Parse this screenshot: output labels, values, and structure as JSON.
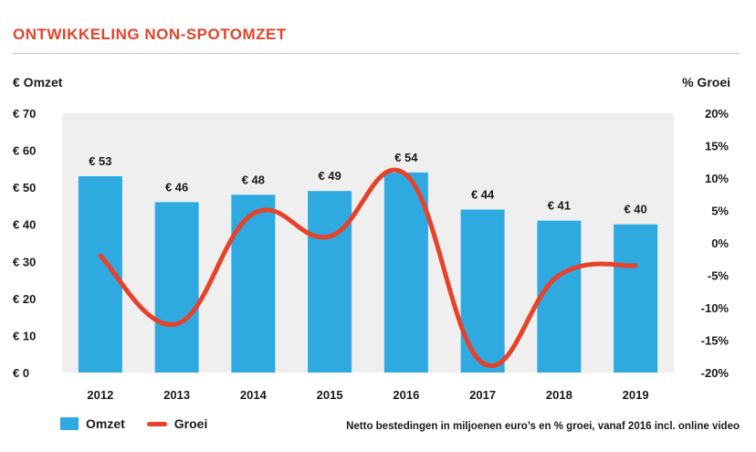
{
  "header": {
    "title": "ONTWIKKELING NON-SPOTOMZET"
  },
  "axes": {
    "left_label": "€ Omzet",
    "right_label": "% Groei"
  },
  "legend": {
    "bar_label": "Omzet",
    "line_label": "Groei"
  },
  "footnote": "Netto bestedingen in miljoenen euro’s en % groei, vanaf 2016 incl. online video",
  "colors": {
    "bar": "#2eaae1",
    "line": "#e8412a",
    "plot_bg": "#efefef",
    "title": "#e8412a"
  },
  "chart_data": {
    "type": "bar",
    "categories": [
      "2012",
      "2013",
      "2014",
      "2015",
      "2016",
      "2017",
      "2018",
      "2019"
    ],
    "series": [
      {
        "name": "Omzet",
        "type": "bar",
        "axis": "left",
        "values": [
          53,
          46,
          48,
          49,
          54,
          44,
          41,
          40
        ],
        "labels": [
          "€ 53",
          "€ 46",
          "€ 48",
          "€ 49",
          "€ 54",
          "€ 44",
          "€ 41",
          "€ 40"
        ]
      },
      {
        "name": "Groei",
        "type": "line",
        "axis": "right",
        "values": [
          -2,
          -12.5,
          4.5,
          1,
          10.5,
          -18.5,
          -5,
          -3.5
        ]
      }
    ],
    "y_left": {
      "ylim": [
        0,
        70
      ],
      "ticks": [
        0,
        10,
        20,
        30,
        40,
        50,
        60,
        70
      ],
      "tick_labels": [
        "€ 0",
        "€ 10",
        "€ 20",
        "€ 30",
        "€ 40",
        "€ 50",
        "€ 60",
        "€ 70"
      ]
    },
    "y_right": {
      "ylim": [
        -20,
        20
      ],
      "ticks": [
        -20,
        -15,
        -10,
        -5,
        0,
        5,
        10,
        15,
        20
      ],
      "tick_labels": [
        "-20%",
        "-15%",
        "-10%",
        "-5%",
        "0%",
        "5%",
        "10%",
        "15%",
        "20%"
      ]
    },
    "grid": false,
    "legend_position": "bottom-left"
  }
}
